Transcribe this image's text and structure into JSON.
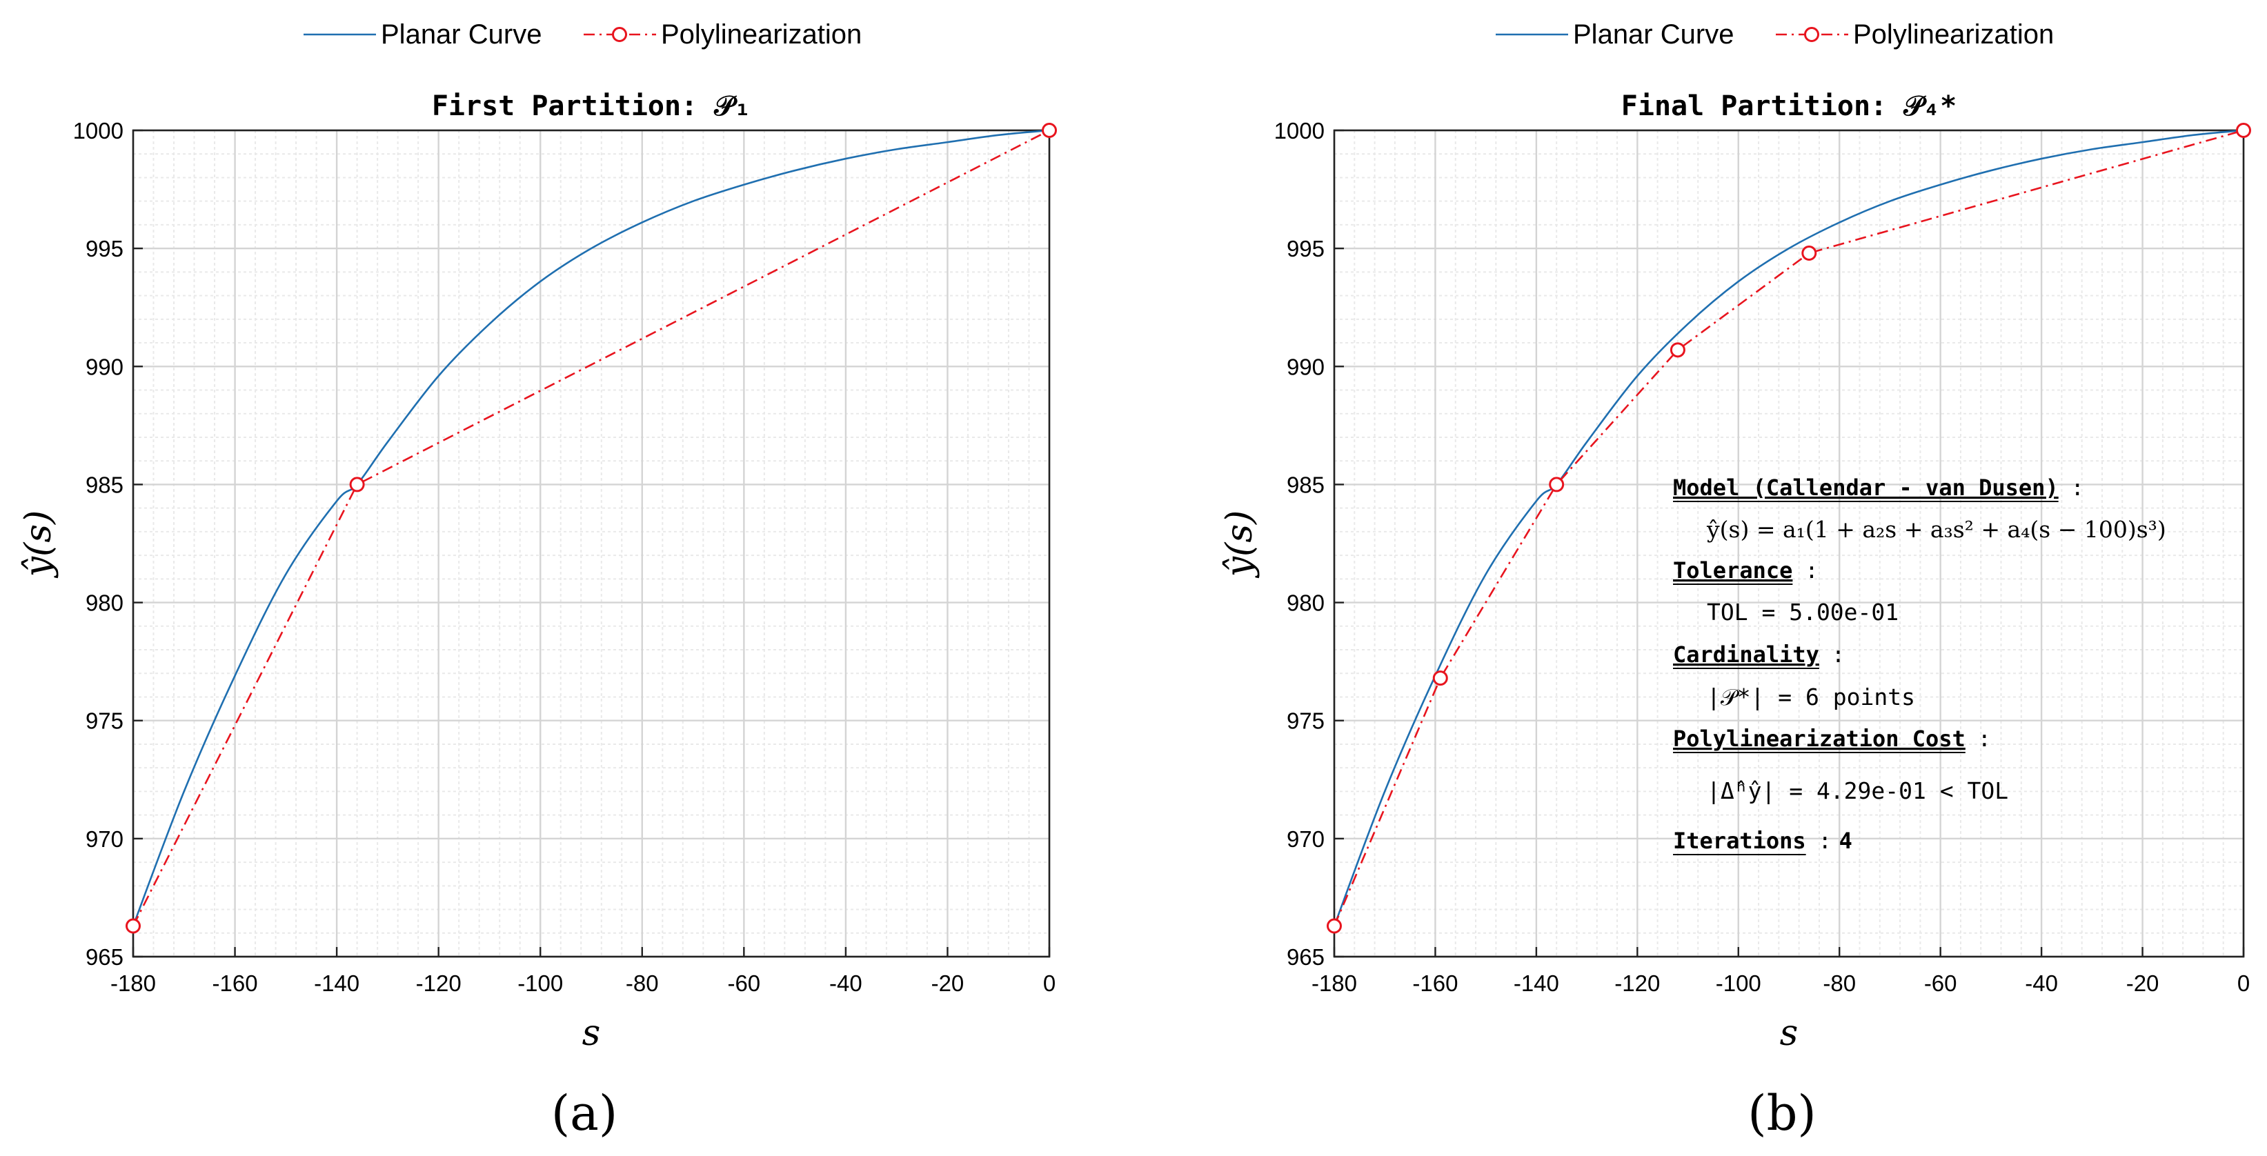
{
  "legend_labels": [
    "Planar Curve",
    "Polylinearization"
  ],
  "colors": {
    "curve": "#1f6fb0",
    "poly": "#e8141e",
    "grid_major": "#d4d4d4",
    "grid_minor": "#e9e9e9",
    "axis": "#222222"
  },
  "chart_data": [
    {
      "type": "line",
      "panel_label": "(a)",
      "title": "First Partition: 𝒫₁",
      "xlabel": "s",
      "ylabel": "ŷ(s)",
      "xlim": [
        -180,
        0
      ],
      "ylim": [
        965,
        1000
      ],
      "x_ticks": [
        -180,
        -160,
        -140,
        -120,
        -100,
        -80,
        -60,
        -40,
        -20,
        0
      ],
      "y_ticks": [
        965,
        970,
        975,
        980,
        985,
        990,
        995,
        1000
      ],
      "grid": true,
      "legend_position": "top",
      "series": [
        {
          "name": "Planar Curve",
          "style": "solid",
          "x": [
            -180,
            -170,
            -160,
            -150,
            -140,
            -136,
            -130,
            -120,
            -110,
            -100,
            -90,
            -80,
            -70,
            -60,
            -50,
            -40,
            -30,
            -20,
            -10,
            0
          ],
          "y": [
            966.3,
            972.0,
            976.9,
            981.2,
            984.3,
            985.0,
            986.8,
            989.6,
            991.8,
            993.6,
            995.0,
            996.1,
            997.0,
            997.7,
            998.3,
            998.8,
            999.2,
            999.5,
            999.8,
            1000.0
          ]
        },
        {
          "name": "Polylinearization",
          "style": "dashdot",
          "markers": "circle",
          "x": [
            -180,
            -136,
            0
          ],
          "y": [
            966.3,
            985.0,
            1000.0
          ]
        }
      ]
    },
    {
      "type": "line",
      "panel_label": "(b)",
      "title": "Final Partition: 𝒫₄*",
      "xlabel": "s",
      "ylabel": "ŷ(s)",
      "xlim": [
        -180,
        0
      ],
      "ylim": [
        965,
        1000
      ],
      "x_ticks": [
        -180,
        -160,
        -140,
        -120,
        -100,
        -80,
        -60,
        -40,
        -20,
        0
      ],
      "y_ticks": [
        965,
        970,
        975,
        980,
        985,
        990,
        995,
        1000
      ],
      "grid": true,
      "legend_position": "top",
      "series": [
        {
          "name": "Planar Curve",
          "style": "solid",
          "x": [
            -180,
            -170,
            -160,
            -150,
            -140,
            -136,
            -130,
            -120,
            -110,
            -100,
            -90,
            -80,
            -70,
            -60,
            -50,
            -40,
            -30,
            -20,
            -10,
            0
          ],
          "y": [
            966.3,
            972.0,
            976.9,
            981.2,
            984.3,
            985.0,
            986.8,
            989.6,
            991.8,
            993.6,
            995.0,
            996.1,
            997.0,
            997.7,
            998.3,
            998.8,
            999.2,
            999.5,
            999.8,
            1000.0
          ]
        },
        {
          "name": "Polylinearization",
          "style": "dashdot",
          "markers": "circle",
          "x": [
            -180,
            -159,
            -136,
            -112,
            -86,
            0
          ],
          "y": [
            966.3,
            976.8,
            985.0,
            990.7,
            994.8,
            1000.0
          ]
        }
      ],
      "annotation": {
        "model_heading": "Model (Callendar - van Dusen)",
        "model_formula": "ŷ(s) = a₁(1 + a₂s + a₃s² + a₄(s − 100)s³)",
        "tolerance_heading": "Tolerance",
        "tolerance_value": "TOL = 5.00e-01",
        "cardinality_heading": "Cardinality",
        "cardinality_value": "|𝒫*| = 6 points",
        "cost_heading": "Polylinearization Cost",
        "cost_value": "|Δ̂ʰŷ| = 4.29e-01 < TOL",
        "iterations_heading": "Iterations",
        "iterations_value": "4",
        "separator": ":"
      }
    }
  ]
}
